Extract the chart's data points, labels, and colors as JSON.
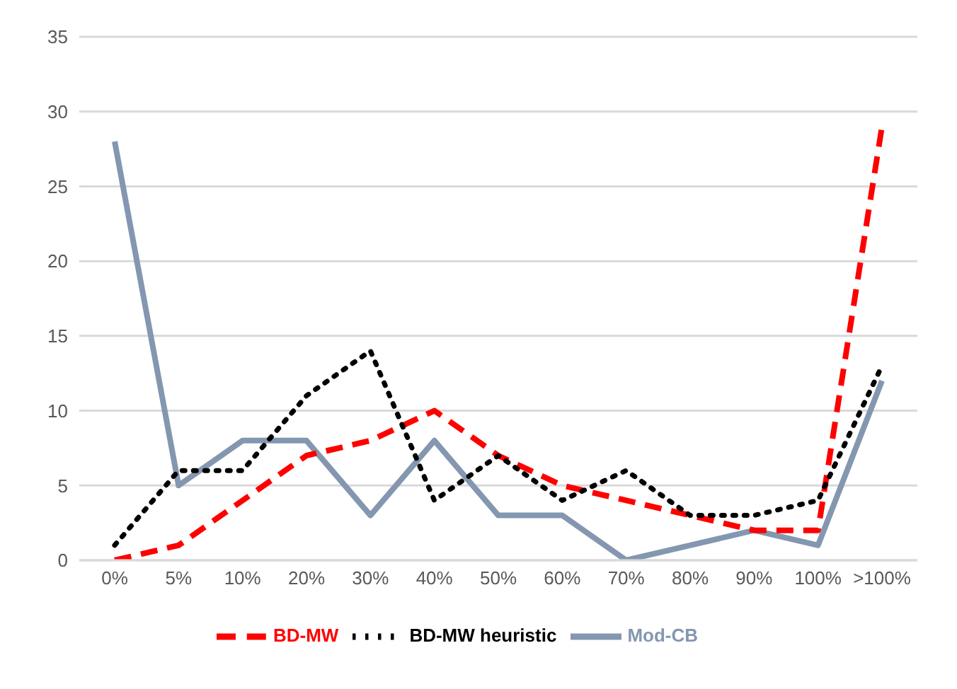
{
  "chart_data": {
    "type": "line",
    "categories": [
      "0%",
      "5%",
      "10%",
      "20%",
      "30%",
      "40%",
      "50%",
      "60%",
      "70%",
      "80%",
      "90%",
      "100%",
      ">100%"
    ],
    "series": [
      {
        "name": "Mod-CB",
        "color": "#8497b0",
        "line_style": "solid",
        "values": [
          28,
          5,
          8,
          8,
          3,
          8,
          3,
          3,
          0,
          1,
          2,
          1,
          12
        ]
      },
      {
        "name": "BD-MW",
        "color": "#ff0000",
        "line_style": "dashed",
        "values": [
          0,
          1,
          4,
          7,
          8,
          10,
          7,
          5,
          4,
          3,
          2,
          2,
          29
        ]
      },
      {
        "name": "BD-MW heuristic",
        "color": "#000000",
        "line_style": "dotted",
        "values": [
          1,
          6,
          6,
          11,
          14,
          4,
          7,
          4,
          6,
          3,
          3,
          4,
          13
        ]
      }
    ],
    "ylim": [
      0,
      35
    ],
    "yticks": [
      0,
      5,
      10,
      15,
      20,
      25,
      30,
      35
    ],
    "grid": "y",
    "legend": "bottom",
    "marker": "none"
  }
}
